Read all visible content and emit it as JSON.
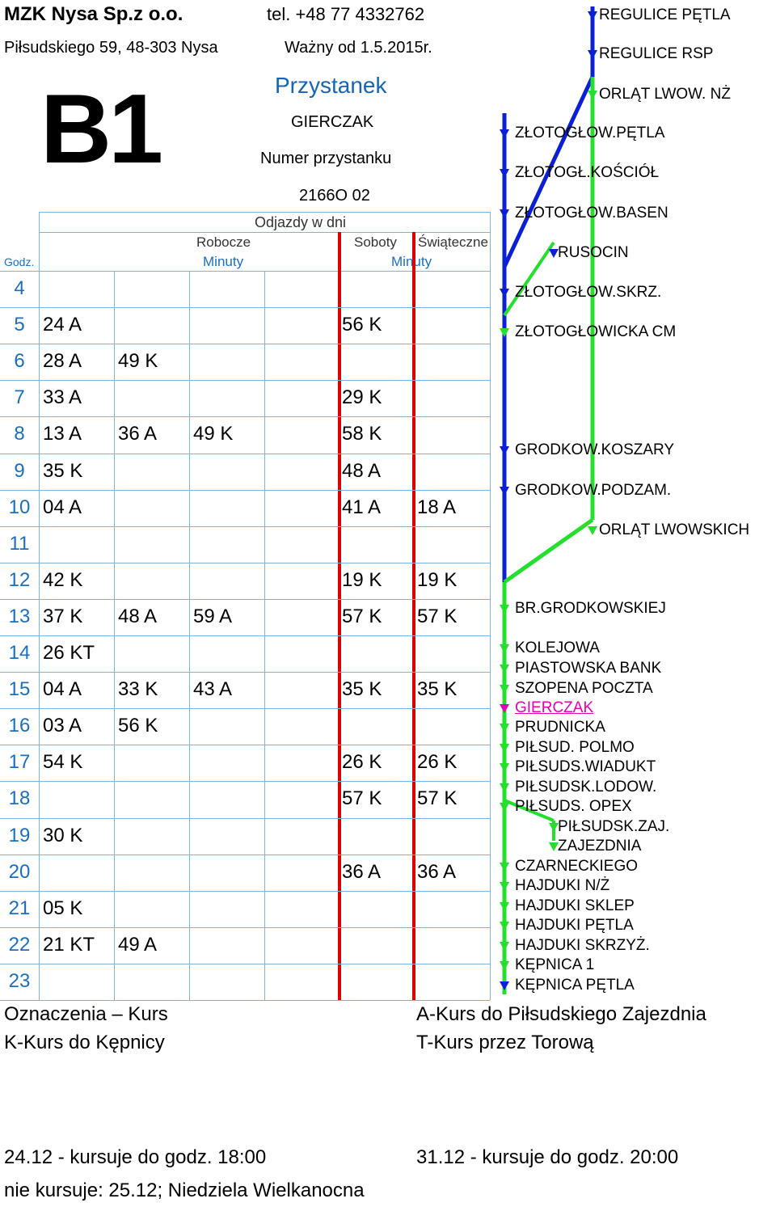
{
  "header": {
    "company": "MZK Nysa Sp.z o.o.",
    "phone": "tel. +48 77 4332762",
    "address": "Piłsudskiego 59, 48-303 Nysa",
    "valid_from": "Ważny od 1.5.2015r.",
    "line": "B1",
    "stop_label": "Przystanek",
    "stop_name": "GIERCZAK",
    "stop_number_label": "Numer przystanku",
    "stop_number": "2166O 02"
  },
  "table": {
    "departures_label": "Odjazdy w dni",
    "col_workdays": "Robocze",
    "col_saturdays": "Soboty",
    "col_holidays": "Świąteczne",
    "hour_label": "Godz.",
    "minutes_label_work": "Minuty",
    "minutes_label_weekend": "Minuty",
    "rows": [
      {
        "hour": "4",
        "work": [
          "",
          "",
          ""
        ],
        "sat": "",
        "hol": ""
      },
      {
        "hour": "5",
        "work": [
          "24 A",
          "",
          ""
        ],
        "sat": "56 K",
        "hol": ""
      },
      {
        "hour": "6",
        "work": [
          "28 A",
          "49 K",
          ""
        ],
        "sat": "",
        "hol": ""
      },
      {
        "hour": "7",
        "work": [
          "33 A",
          "",
          ""
        ],
        "sat": "29 K",
        "hol": ""
      },
      {
        "hour": "8",
        "work": [
          "13 A",
          "36 A",
          "49 K"
        ],
        "sat": "58 K",
        "hol": ""
      },
      {
        "hour": "9",
        "work": [
          "35 K",
          "",
          ""
        ],
        "sat": "48 A",
        "hol": ""
      },
      {
        "hour": "10",
        "work": [
          "04 A",
          "",
          ""
        ],
        "sat": "41 A",
        "hol": "18 A"
      },
      {
        "hour": "11",
        "work": [
          "",
          "",
          ""
        ],
        "sat": "",
        "hol": ""
      },
      {
        "hour": "12",
        "work": [
          "42 K",
          "",
          ""
        ],
        "sat": "19 K",
        "hol": "19 K"
      },
      {
        "hour": "13",
        "work": [
          "37 K",
          "48 A",
          "59 A"
        ],
        "sat": "57 K",
        "hol": "57 K"
      },
      {
        "hour": "14",
        "work": [
          "26 KT",
          "",
          ""
        ],
        "sat": "",
        "hol": ""
      },
      {
        "hour": "15",
        "work": [
          "04 A",
          "33 K",
          "43 A"
        ],
        "sat": "35 K",
        "hol": "35 K"
      },
      {
        "hour": "16",
        "work": [
          "03 A",
          "56 K",
          ""
        ],
        "sat": "",
        "hol": ""
      },
      {
        "hour": "17",
        "work": [
          "54 K",
          "",
          ""
        ],
        "sat": "26 K",
        "hol": "26 K"
      },
      {
        "hour": "18",
        "work": [
          "",
          "",
          ""
        ],
        "sat": "57 K",
        "hol": "57 K"
      },
      {
        "hour": "19",
        "work": [
          "30 K",
          "",
          ""
        ],
        "sat": "",
        "hol": ""
      },
      {
        "hour": "20",
        "work": [
          "",
          "",
          ""
        ],
        "sat": "36 A",
        "hol": "36 A"
      },
      {
        "hour": "21",
        "work": [
          "05 K",
          "",
          ""
        ],
        "sat": "",
        "hol": ""
      },
      {
        "hour": "22",
        "work": [
          "21 KT",
          "49 A",
          ""
        ],
        "sat": "",
        "hol": ""
      },
      {
        "hour": "23",
        "work": [
          "",
          "",
          ""
        ],
        "sat": "",
        "hol": ""
      }
    ]
  },
  "legend": {
    "title": "Oznaczenia – Kurs",
    "k": "K-Kurs do Kępnicy",
    "a": "A-Kurs do Piłsudskiego Zajezdnia",
    "t": "T-Kurs przez Torową"
  },
  "notes": {
    "dec24": "24.12 - kursuje do godz. 18:00",
    "dec31": "31.12 - kursuje do godz. 20:00",
    "no_service": "nie kursuje: 25.12; Niedziela Wielkanocna"
  },
  "route": {
    "stops": [
      "REGULICE PĘTLA",
      "REGULICE RSP",
      "ORLĄT LWOW. NŻ",
      "ZŁOTOGŁOW.PĘTLA",
      "ZŁOTOGŁ.KOŚCIÓŁ",
      "ZŁOTOGŁOW.BASEN",
      "RUSOCIN",
      "ZŁOTOGŁOW.SKRZ.",
      "ZŁOTOGŁOWICKA CM",
      "GRODKOW.KOSZARY",
      "GRODKOW.PODZAM.",
      "ORLĄT LWOWSKICH",
      "BR.GRODKOWSKIEJ",
      "KOLEJOWA",
      "PIASTOWSKA BANK",
      "SZOPENA POCZTA",
      "GIERCZAK",
      "PRUDNICKA",
      "PIŁSUD. POLMO",
      "PIŁSUDS.WIADUKT",
      "PIŁSUDSK.LODOW.",
      "PIŁSUDS. OPEX",
      "PIŁSUDSK.ZAJ.",
      "ZAJEZDNIA",
      "CZARNECKIEGO",
      "HAJDUKI N/Ż",
      "HAJDUKI SKLEP",
      "HAJDUKI PĘTLA",
      "HAJDUKI SKRZYŻ.",
      "KĘPNICA 1",
      "KĘPNICA PĘTLA"
    ],
    "colors": {
      "blue": "#0a1fd6",
      "green": "#22e02c",
      "current": "#e600b8"
    }
  }
}
